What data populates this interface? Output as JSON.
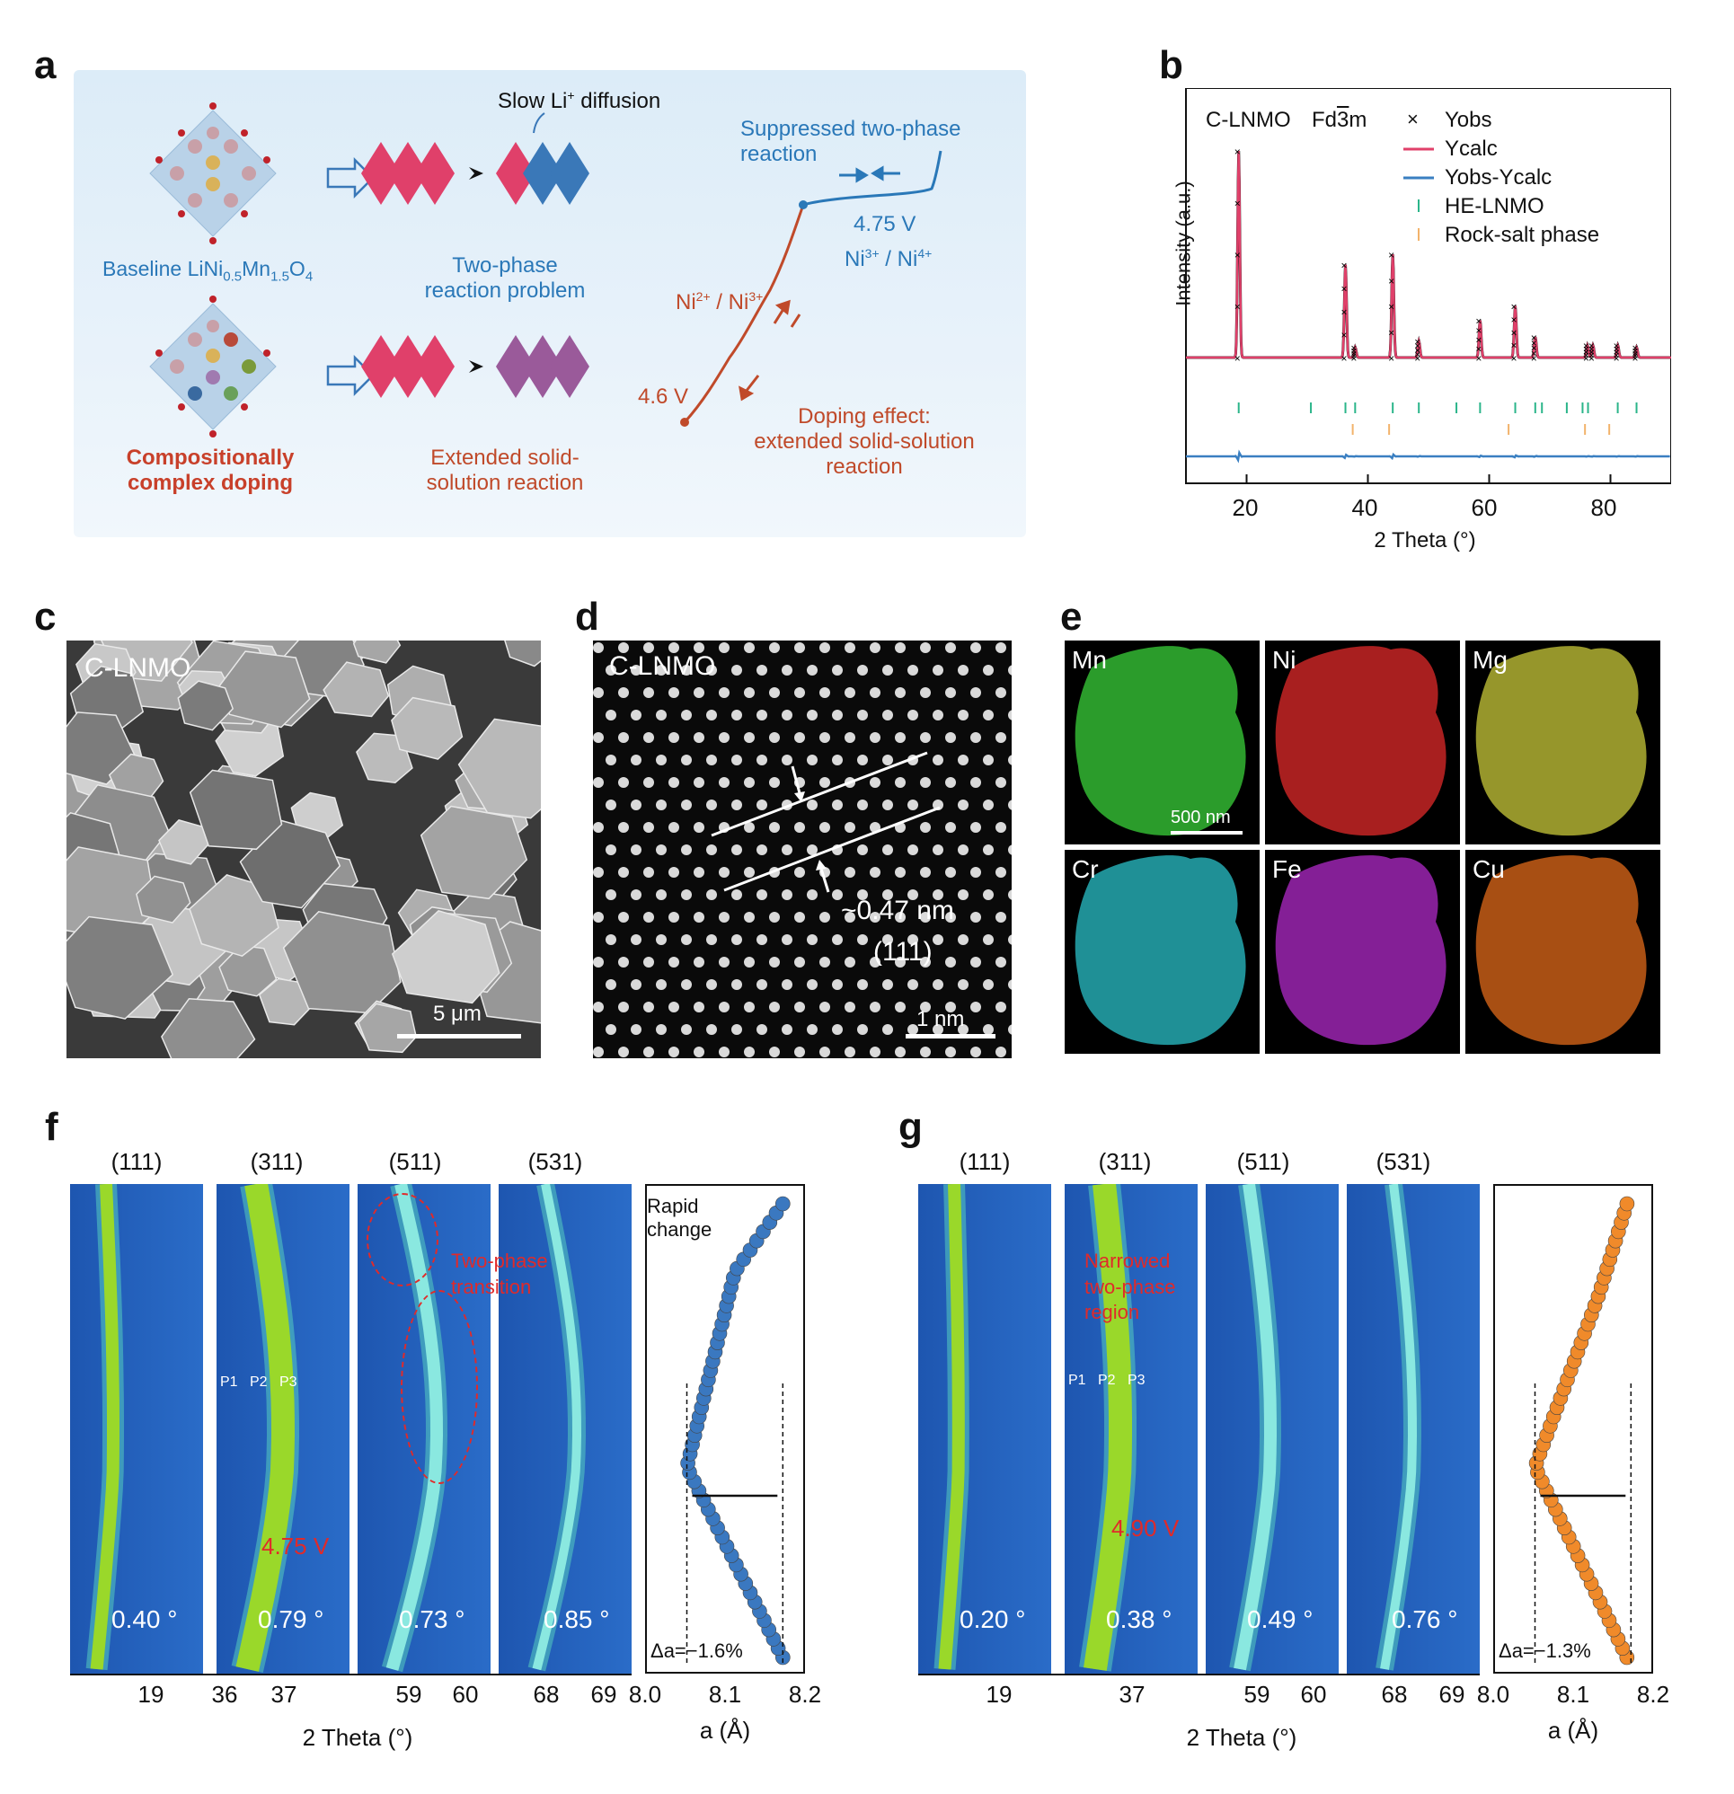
{
  "labels": {
    "a": "a",
    "b": "b",
    "c": "c",
    "d": "d",
    "e": "e",
    "f": "f",
    "g": "g"
  },
  "panel_a": {
    "baseline_prefix": "Baseline LiNi",
    "baseline_sub1": "0.5",
    "baseline_mn": "Mn",
    "baseline_sub2": "1.5",
    "baseline_o": "O",
    "baseline_sub3": "4",
    "doping_line1": "Compositionally",
    "doping_line2": "complex doping",
    "slow_li_prefix": "Slow Li",
    "slow_li_sup": "+",
    "slow_li_suffix": " diffusion",
    "two_phase_line1": "Two-phase",
    "two_phase_line2": "reaction problem",
    "extended_line1": "Extended solid-",
    "extended_line2": "solution reaction",
    "suppressed_line1": "Suppressed two-phase",
    "suppressed_line2": "reaction",
    "v_475": "4.75 V",
    "ni34_a": "Ni",
    "ni34_b": "3+",
    "ni34_c": " / Ni",
    "ni34_d": "4+",
    "ni23_a": "Ni",
    "ni23_b": "2+",
    "ni23_c": " / Ni",
    "ni23_d": "3+",
    "v_46": "4.6 V",
    "doping_eff_line1": "Doping effect:",
    "doping_eff_line2": "extended solid-solution",
    "doping_eff_line3": "reaction"
  },
  "panel_b": {
    "sample": "C-LNMO",
    "space_group_prefix": "Fd",
    "space_group_bar": "3",
    "space_group_suffix": "m",
    "legend": [
      "Yobs",
      "Ycalc",
      "Yobs-Ycalc",
      "HE-LNMO",
      "Rock-salt phase"
    ],
    "legend_marker": "×",
    "ylabel": "Intensity (a.u.)",
    "xlabel": "2 Theta (°)",
    "xticks": [
      "20",
      "40",
      "60",
      "80"
    ],
    "colors": {
      "ycalc": "#e0406a",
      "diff": "#3a7fc1",
      "he": "#2bb58a",
      "rock": "#f2b36b"
    }
  },
  "chart_data": {
    "type": "line",
    "xlabel": "2 Theta (°)",
    "ylabel": "Intensity (a.u.)",
    "xlim": [
      10,
      90
    ],
    "peaks_2theta": [
      18.7,
      36.3,
      37.9,
      44.1,
      48.4,
      58.5,
      64.3,
      67.6,
      76.2,
      77.1,
      81.2,
      84.3
    ],
    "peak_relative_intensity": [
      1.0,
      0.45,
      0.05,
      0.5,
      0.08,
      0.18,
      0.25,
      0.1,
      0.06,
      0.06,
      0.06,
      0.05
    ],
    "he_lnmo_ticks": [
      18.7,
      30.6,
      36.3,
      37.9,
      44.1,
      48.4,
      54.6,
      58.5,
      64.3,
      67.6,
      68.7,
      72.8,
      75.4,
      76.3,
      81.2,
      84.3
    ],
    "rock_salt_ticks": [
      37.5,
      43.5,
      63.2,
      75.8,
      79.8
    ]
  },
  "panel_c": {
    "sample": "C-LNMO",
    "scale": "5 μm"
  },
  "panel_d": {
    "sample": "C-LNMO",
    "spacing": "~0.47 nm",
    "plane": "(111)",
    "scale": "1 nm"
  },
  "panel_e": {
    "elements": [
      "Mn",
      "Ni",
      "Mg",
      "Cr",
      "Fe",
      "Cu"
    ],
    "scale": "500 nm"
  },
  "panel_f": {
    "headers": [
      "(111)",
      "(311)",
      "(511)",
      "(531)"
    ],
    "shifts": [
      "0.40 °",
      "0.79 °",
      "0.73 °",
      "0.85 °"
    ],
    "p_labels": [
      "P1",
      "P2",
      "P3"
    ],
    "voltage": "4.75 V",
    "annot_line1": "Two-phase",
    "annot_line2": "transition",
    "rapid_line1": "Rapid",
    "rapid_line2": "change",
    "delta": "Δa=−1.6%",
    "xticks_a": [
      "19"
    ],
    "xticks_b": [
      "36",
      "37"
    ],
    "xticks_c": [
      "59",
      "60"
    ],
    "xticks_d": [
      "68",
      "69"
    ],
    "a_ticks": [
      "8.0",
      "8.1",
      "8.2"
    ],
    "xlabel": "2 Theta (°)",
    "alabel": "a (Å)",
    "color": "#3a78c0"
  },
  "panel_g": {
    "headers": [
      "(111)",
      "(311)",
      "(511)",
      "(531)"
    ],
    "shifts": [
      "0.20 °",
      "0.38 °",
      "0.49 °",
      "0.76 °"
    ],
    "p_labels": [
      "P1",
      "P2",
      "P3"
    ],
    "voltage": "4.90 V",
    "annot_line1": "Narrowed",
    "annot_line2": "two-phase",
    "annot_line3": "region",
    "delta": "Δa=−1.3%",
    "xticks_a": [
      "19"
    ],
    "xticks_b": [
      "37"
    ],
    "xticks_c": [
      "59",
      "60"
    ],
    "xticks_d": [
      "68",
      "69"
    ],
    "a_ticks": [
      "8.0",
      "8.1",
      "8.2"
    ],
    "xlabel": "2 Theta (°)",
    "alabel": "a (Å)",
    "color": "#f08a2a"
  }
}
